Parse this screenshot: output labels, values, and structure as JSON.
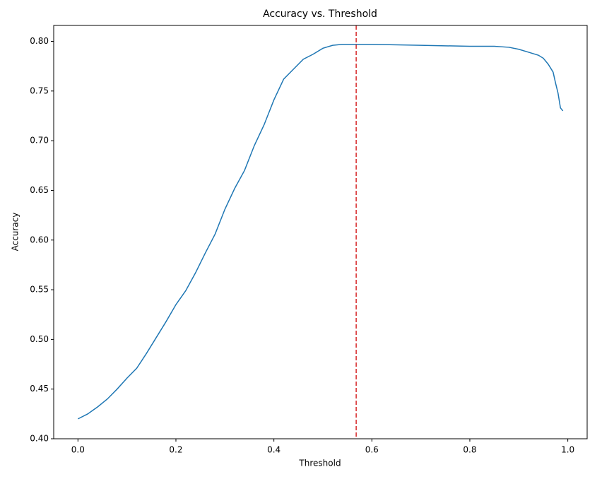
{
  "chart_data": {
    "type": "line",
    "title": "Accuracy vs. Threshold",
    "x_label": "Threshold",
    "y_label": "Accuracy",
    "x": [
      0.0,
      0.02,
      0.04,
      0.06,
      0.08,
      0.1,
      0.12,
      0.14,
      0.16,
      0.18,
      0.2,
      0.22,
      0.24,
      0.26,
      0.28,
      0.3,
      0.32,
      0.34,
      0.36,
      0.38,
      0.4,
      0.42,
      0.44,
      0.46,
      0.48,
      0.5,
      0.52,
      0.54,
      0.56,
      0.6,
      0.7,
      0.8,
      0.85,
      0.88,
      0.9,
      0.92,
      0.94,
      0.95,
      0.96,
      0.97,
      0.975,
      0.98,
      0.985,
      0.99
    ],
    "series": [
      {
        "color": "#1f77b4",
        "values": [
          0.42,
          0.425,
          0.432,
          0.44,
          0.45,
          0.461,
          0.471,
          0.486,
          0.502,
          0.518,
          0.535,
          0.549,
          0.567,
          0.587,
          0.606,
          0.631,
          0.652,
          0.67,
          0.695,
          0.716,
          0.741,
          0.762,
          0.772,
          0.782,
          0.787,
          0.793,
          0.796,
          0.797,
          0.797,
          0.797,
          0.796,
          0.795,
          0.795,
          0.794,
          0.792,
          0.789,
          0.786,
          0.783,
          0.777,
          0.769,
          0.758,
          0.748,
          0.733,
          0.73
        ]
      }
    ],
    "vline": {
      "x": 0.568,
      "color": "#d62728"
    },
    "xlim": [
      -0.0495,
      1.0395
    ],
    "ylim": [
      0.4,
      0.816
    ],
    "xticks": [
      {
        "value": 0,
        "label": "0.0"
      },
      0.2,
      0.4,
      0.6,
      0.8,
      {
        "value": 1,
        "label": "1.0"
      }
    ],
    "yticks": [
      {
        "value": 0.4,
        "label": "0.40"
      },
      0.45,
      {
        "value": 0.5,
        "label": "0.50"
      },
      0.55,
      {
        "value": 0.6,
        "label": "0.60"
      },
      0.65,
      {
        "value": 0.7,
        "label": "0.70"
      },
      0.75,
      {
        "value": 0.8,
        "label": "0.80"
      }
    ]
  }
}
